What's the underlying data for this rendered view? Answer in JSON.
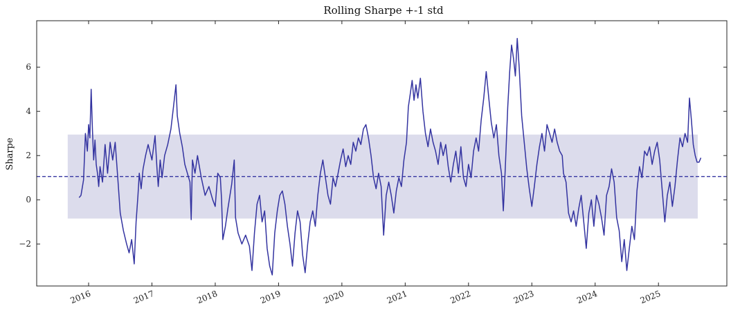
{
  "chart_data": {
    "type": "line",
    "title": "Rolling Sharpe +-1 std",
    "xlabel": "",
    "ylabel": "Sharpe",
    "xlim": [
      2015.18,
      2026.08
    ],
    "ylim": [
      -3.9,
      8.1
    ],
    "x_tick_labels": [
      "2016",
      "2017",
      "2018",
      "2019",
      "2020",
      "2021",
      "2022",
      "2023",
      "2024",
      "2025"
    ],
    "y_tick_labels": [
      {
        "value": 6,
        "label": "6"
      },
      {
        "value": 4,
        "label": "4"
      },
      {
        "value": 2,
        "label": "2"
      },
      {
        "value": 0,
        "label": "0"
      },
      {
        "value": -2,
        "label": "−2"
      }
    ],
    "mean": 1.05,
    "band": {
      "x_start": 2015.67,
      "x_end": 2025.62,
      "lower": -0.85,
      "upper": 2.95
    },
    "line_color": "#3333a0",
    "band_color": "#dcdcec",
    "grid": false,
    "series": [
      {
        "values": [
          [
            2015.85,
            0.1
          ],
          [
            2015.88,
            0.2
          ],
          [
            2015.92,
            0.9
          ],
          [
            2015.95,
            3.0
          ],
          [
            2015.98,
            2.2
          ],
          [
            2016.0,
            3.4
          ],
          [
            2016.02,
            2.8
          ],
          [
            2016.04,
            5.0
          ],
          [
            2016.06,
            3.2
          ],
          [
            2016.08,
            1.8
          ],
          [
            2016.1,
            2.7
          ],
          [
            2016.12,
            1.6
          ],
          [
            2016.14,
            1.2
          ],
          [
            2016.16,
            0.6
          ],
          [
            2016.18,
            1.5
          ],
          [
            2016.22,
            0.8
          ],
          [
            2016.26,
            2.5
          ],
          [
            2016.3,
            1.2
          ],
          [
            2016.34,
            2.6
          ],
          [
            2016.38,
            1.8
          ],
          [
            2016.42,
            2.6
          ],
          [
            2016.46,
            1.0
          ],
          [
            2016.5,
            -0.6
          ],
          [
            2016.55,
            -1.4
          ],
          [
            2016.6,
            -2.0
          ],
          [
            2016.64,
            -2.4
          ],
          [
            2016.68,
            -1.8
          ],
          [
            2016.72,
            -2.9
          ],
          [
            2016.75,
            -1.0
          ],
          [
            2016.78,
            0.2
          ],
          [
            2016.8,
            1.2
          ],
          [
            2016.83,
            0.5
          ],
          [
            2016.86,
            1.4
          ],
          [
            2016.9,
            2.0
          ],
          [
            2016.94,
            2.5
          ],
          [
            2017.0,
            1.8
          ],
          [
            2017.05,
            2.9
          ],
          [
            2017.08,
            1.4
          ],
          [
            2017.1,
            0.6
          ],
          [
            2017.13,
            1.8
          ],
          [
            2017.16,
            1.0
          ],
          [
            2017.2,
            2.0
          ],
          [
            2017.25,
            2.5
          ],
          [
            2017.3,
            3.2
          ],
          [
            2017.34,
            4.2
          ],
          [
            2017.38,
            5.2
          ],
          [
            2017.4,
            3.8
          ],
          [
            2017.44,
            3.0
          ],
          [
            2017.48,
            2.4
          ],
          [
            2017.52,
            1.6
          ],
          [
            2017.56,
            1.2
          ],
          [
            2017.6,
            0.8
          ],
          [
            2017.62,
            -0.9
          ],
          [
            2017.64,
            1.8
          ],
          [
            2017.68,
            1.2
          ],
          [
            2017.72,
            2.0
          ],
          [
            2017.78,
            1.0
          ],
          [
            2017.84,
            0.2
          ],
          [
            2017.9,
            0.6
          ],
          [
            2017.96,
            0.0
          ],
          [
            2018.0,
            -0.3
          ],
          [
            2018.04,
            1.2
          ],
          [
            2018.08,
            1.0
          ],
          [
            2018.1,
            0.0
          ],
          [
            2018.12,
            -1.8
          ],
          [
            2018.16,
            -1.2
          ],
          [
            2018.2,
            -0.4
          ],
          [
            2018.26,
            0.7
          ],
          [
            2018.3,
            1.8
          ],
          [
            2018.32,
            -0.8
          ],
          [
            2018.36,
            -1.5
          ],
          [
            2018.42,
            -2.0
          ],
          [
            2018.48,
            -1.6
          ],
          [
            2018.54,
            -2.1
          ],
          [
            2018.58,
            -3.2
          ],
          [
            2018.62,
            -1.5
          ],
          [
            2018.66,
            -0.2
          ],
          [
            2018.7,
            0.2
          ],
          [
            2018.74,
            -1.0
          ],
          [
            2018.78,
            -0.5
          ],
          [
            2018.82,
            -2.2
          ],
          [
            2018.86,
            -3.0
          ],
          [
            2018.9,
            -3.4
          ],
          [
            2018.94,
            -1.5
          ],
          [
            2018.98,
            -0.5
          ],
          [
            2019.02,
            0.2
          ],
          [
            2019.06,
            0.4
          ],
          [
            2019.1,
            -0.2
          ],
          [
            2019.14,
            -1.2
          ],
          [
            2019.18,
            -2.0
          ],
          [
            2019.22,
            -3.0
          ],
          [
            2019.26,
            -1.5
          ],
          [
            2019.3,
            -0.5
          ],
          [
            2019.34,
            -1.0
          ],
          [
            2019.38,
            -2.5
          ],
          [
            2019.42,
            -3.3
          ],
          [
            2019.46,
            -2.0
          ],
          [
            2019.5,
            -1.0
          ],
          [
            2019.54,
            -0.5
          ],
          [
            2019.58,
            -1.2
          ],
          [
            2019.62,
            0.2
          ],
          [
            2019.66,
            1.2
          ],
          [
            2019.7,
            1.8
          ],
          [
            2019.74,
            1.0
          ],
          [
            2019.78,
            0.2
          ],
          [
            2019.82,
            -0.2
          ],
          [
            2019.86,
            1.0
          ],
          [
            2019.9,
            0.6
          ],
          [
            2019.94,
            1.2
          ],
          [
            2019.98,
            1.8
          ],
          [
            2020.02,
            2.3
          ],
          [
            2020.06,
            1.5
          ],
          [
            2020.1,
            2.0
          ],
          [
            2020.14,
            1.6
          ],
          [
            2020.18,
            2.6
          ],
          [
            2020.22,
            2.2
          ],
          [
            2020.26,
            2.8
          ],
          [
            2020.3,
            2.5
          ],
          [
            2020.34,
            3.2
          ],
          [
            2020.38,
            3.4
          ],
          [
            2020.42,
            2.8
          ],
          [
            2020.46,
            2.0
          ],
          [
            2020.5,
            1.0
          ],
          [
            2020.54,
            0.5
          ],
          [
            2020.58,
            1.2
          ],
          [
            2020.62,
            0.6
          ],
          [
            2020.66,
            -1.6
          ],
          [
            2020.7,
            0.2
          ],
          [
            2020.74,
            0.8
          ],
          [
            2020.78,
            0.2
          ],
          [
            2020.82,
            -0.6
          ],
          [
            2020.86,
            0.4
          ],
          [
            2020.9,
            1.0
          ],
          [
            2020.94,
            0.6
          ],
          [
            2020.98,
            1.8
          ],
          [
            2021.02,
            2.6
          ],
          [
            2021.05,
            4.2
          ],
          [
            2021.08,
            4.8
          ],
          [
            2021.11,
            5.4
          ],
          [
            2021.14,
            4.5
          ],
          [
            2021.17,
            5.2
          ],
          [
            2021.2,
            4.6
          ],
          [
            2021.24,
            5.5
          ],
          [
            2021.28,
            4.0
          ],
          [
            2021.32,
            3.0
          ],
          [
            2021.36,
            2.4
          ],
          [
            2021.4,
            3.2
          ],
          [
            2021.44,
            2.6
          ],
          [
            2021.48,
            2.2
          ],
          [
            2021.52,
            1.6
          ],
          [
            2021.56,
            2.6
          ],
          [
            2021.6,
            2.0
          ],
          [
            2021.64,
            2.5
          ],
          [
            2021.68,
            1.5
          ],
          [
            2021.72,
            0.8
          ],
          [
            2021.76,
            1.6
          ],
          [
            2021.8,
            2.2
          ],
          [
            2021.84,
            1.2
          ],
          [
            2021.88,
            2.4
          ],
          [
            2021.92,
            1.0
          ],
          [
            2021.96,
            0.6
          ],
          [
            2022.0,
            1.6
          ],
          [
            2022.04,
            1.0
          ],
          [
            2022.08,
            2.2
          ],
          [
            2022.12,
            2.8
          ],
          [
            2022.16,
            2.2
          ],
          [
            2022.2,
            3.6
          ],
          [
            2022.24,
            4.6
          ],
          [
            2022.28,
            5.8
          ],
          [
            2022.32,
            4.6
          ],
          [
            2022.36,
            3.5
          ],
          [
            2022.4,
            2.8
          ],
          [
            2022.44,
            3.4
          ],
          [
            2022.48,
            2.0
          ],
          [
            2022.52,
            1.2
          ],
          [
            2022.55,
            -0.5
          ],
          [
            2022.58,
            1.4
          ],
          [
            2022.62,
            4.2
          ],
          [
            2022.65,
            5.8
          ],
          [
            2022.68,
            7.0
          ],
          [
            2022.71,
            6.4
          ],
          [
            2022.74,
            5.6
          ],
          [
            2022.77,
            7.3
          ],
          [
            2022.8,
            6.0
          ],
          [
            2022.84,
            3.8
          ],
          [
            2022.88,
            2.6
          ],
          [
            2022.92,
            1.4
          ],
          [
            2022.96,
            0.5
          ],
          [
            2023.0,
            -0.3
          ],
          [
            2023.04,
            0.6
          ],
          [
            2023.08,
            1.6
          ],
          [
            2023.12,
            2.4
          ],
          [
            2023.16,
            3.0
          ],
          [
            2023.2,
            2.2
          ],
          [
            2023.24,
            3.4
          ],
          [
            2023.28,
            3.0
          ],
          [
            2023.32,
            2.6
          ],
          [
            2023.36,
            3.2
          ],
          [
            2023.4,
            2.6
          ],
          [
            2023.44,
            2.2
          ],
          [
            2023.48,
            2.0
          ],
          [
            2023.5,
            1.2
          ],
          [
            2023.54,
            0.8
          ],
          [
            2023.58,
            -0.6
          ],
          [
            2023.62,
            -1.0
          ],
          [
            2023.66,
            -0.5
          ],
          [
            2023.7,
            -1.2
          ],
          [
            2023.74,
            -0.4
          ],
          [
            2023.78,
            0.2
          ],
          [
            2023.82,
            -1.0
          ],
          [
            2023.86,
            -2.2
          ],
          [
            2023.9,
            -0.6
          ],
          [
            2023.94,
            0.0
          ],
          [
            2023.98,
            -1.2
          ],
          [
            2024.02,
            0.2
          ],
          [
            2024.06,
            -0.2
          ],
          [
            2024.1,
            -0.8
          ],
          [
            2024.14,
            -1.6
          ],
          [
            2024.18,
            0.2
          ],
          [
            2024.22,
            0.6
          ],
          [
            2024.26,
            1.4
          ],
          [
            2024.3,
            0.8
          ],
          [
            2024.34,
            -0.8
          ],
          [
            2024.38,
            -1.4
          ],
          [
            2024.42,
            -2.8
          ],
          [
            2024.46,
            -1.8
          ],
          [
            2024.5,
            -3.2
          ],
          [
            2024.54,
            -2.2
          ],
          [
            2024.58,
            -1.2
          ],
          [
            2024.62,
            -1.8
          ],
          [
            2024.66,
            0.4
          ],
          [
            2024.7,
            1.5
          ],
          [
            2024.74,
            1.0
          ],
          [
            2024.78,
            2.2
          ],
          [
            2024.82,
            2.0
          ],
          [
            2024.86,
            2.4
          ],
          [
            2024.9,
            1.6
          ],
          [
            2024.94,
            2.2
          ],
          [
            2024.98,
            2.6
          ],
          [
            2025.02,
            1.8
          ],
          [
            2025.06,
            0.4
          ],
          [
            2025.1,
            -1.0
          ],
          [
            2025.14,
            0.2
          ],
          [
            2025.18,
            0.8
          ],
          [
            2025.22,
            -0.3
          ],
          [
            2025.26,
            0.6
          ],
          [
            2025.3,
            1.8
          ],
          [
            2025.34,
            2.8
          ],
          [
            2025.38,
            2.4
          ],
          [
            2025.42,
            3.0
          ],
          [
            2025.46,
            2.6
          ],
          [
            2025.49,
            4.6
          ],
          [
            2025.52,
            3.6
          ],
          [
            2025.55,
            2.5
          ],
          [
            2025.58,
            2.0
          ],
          [
            2025.61,
            1.7
          ],
          [
            2025.64,
            1.7
          ],
          [
            2025.67,
            1.9
          ]
        ]
      }
    ]
  }
}
